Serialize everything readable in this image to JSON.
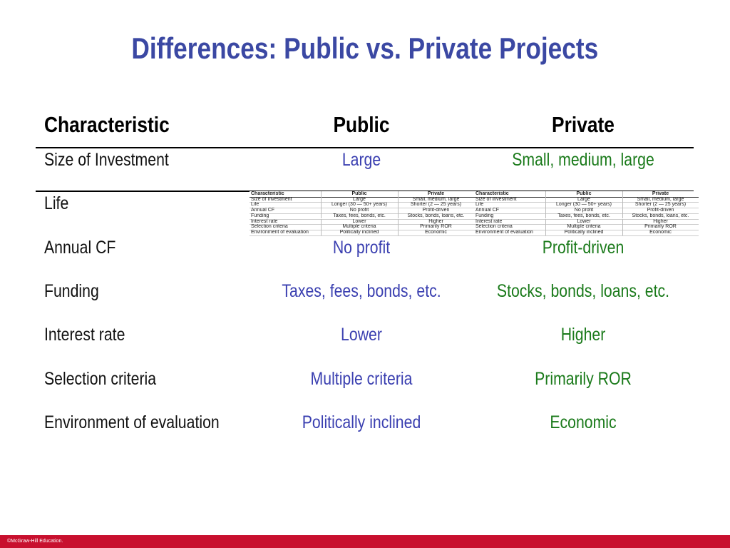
{
  "title": "Differences: Public vs. Private Projects",
  "table": {
    "header": [
      "Characteristic",
      "Public",
      "Private"
    ],
    "rows": [
      [
        "Size of Investment",
        "Large",
        "Small, medium, large"
      ],
      [
        "Life",
        "Longer (30 — 50+ years)",
        "Shorter (2 — 25 years)"
      ],
      [
        "Annual CF",
        "No profit",
        "Profit-driven"
      ],
      [
        "Funding",
        "Taxes, fees, bonds, etc.",
        "Stocks, bonds, loans, etc."
      ],
      [
        "Interest rate",
        "Lower",
        "Higher"
      ],
      [
        "Selection criteria",
        "Multiple criteria",
        "Primarily ROR"
      ],
      [
        "Environment of evaluation",
        "Politically inclined",
        "Economic"
      ]
    ]
  },
  "footer": "©McGraw-Hill Education."
}
